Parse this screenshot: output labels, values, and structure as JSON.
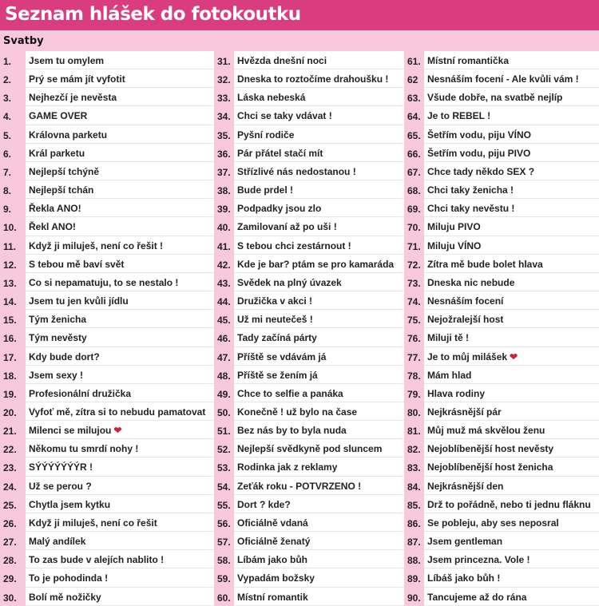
{
  "title": "Seznam hlášek do fotokoutku",
  "section": "Svatby",
  "colors": {
    "header": "#d93d80",
    "background": "#f8c8dc",
    "heart": "#d3203a"
  },
  "items": [
    {
      "n": "1.",
      "t": "Jsem tu omylem"
    },
    {
      "n": "2.",
      "t": "Prý se mám jít vyfotit"
    },
    {
      "n": "3.",
      "t": "Nejhezčí je nevěsta"
    },
    {
      "n": "4.",
      "t": "GAME OVER"
    },
    {
      "n": "5.",
      "t": "Královna parketu"
    },
    {
      "n": "6.",
      "t": "Král parketu"
    },
    {
      "n": "7.",
      "t": "Nejlepší tchýně"
    },
    {
      "n": "8.",
      "t": "Nejlepší tchán"
    },
    {
      "n": "9.",
      "t": "Řekla ANO!"
    },
    {
      "n": "10.",
      "t": "Řekl ANO!"
    },
    {
      "n": "11.",
      "t": "Když ji miluješ, není co řešit !"
    },
    {
      "n": "12.",
      "t": "S tebou mě baví svět"
    },
    {
      "n": "13.",
      "t": "Co si nepamatuju, to se nestalo !"
    },
    {
      "n": "14.",
      "t": "Jsem tu jen kvůli jídlu"
    },
    {
      "n": "15.",
      "t": "Tým ženicha"
    },
    {
      "n": "16.",
      "t": "Tým nevěsty"
    },
    {
      "n": "17.",
      "t": "Kdy bude dort?"
    },
    {
      "n": "18.",
      "t": "Jsem sexy !"
    },
    {
      "n": "19.",
      "t": "Profesionální družička"
    },
    {
      "n": "20.",
      "t": "Vyfoť mě, zítra si to nebudu pamatovat"
    },
    {
      "n": "21.",
      "t": "Milenci se milujou",
      "heart": true
    },
    {
      "n": "22.",
      "t": "Někomu tu smrdí nohy !"
    },
    {
      "n": "23.",
      "t": "SÝÝÝÝÝÝÝR !"
    },
    {
      "n": "24.",
      "t": "Už se perou ?"
    },
    {
      "n": "25.",
      "t": "Chytla jsem kytku"
    },
    {
      "n": "26.",
      "t": "Když ji miluješ, není co řešit"
    },
    {
      "n": "27.",
      "t": "Malý andílek"
    },
    {
      "n": "28.",
      "t": "To zas bude v alejích nablito !"
    },
    {
      "n": "29.",
      "t": "To je pohodinda !"
    },
    {
      "n": "30.",
      "t": "Bolí mě nožičky"
    },
    {
      "n": "31.",
      "t": "Hvězda dnešní noci"
    },
    {
      "n": "32.",
      "t": "Dneska to roztočíme drahoušku !"
    },
    {
      "n": "33.",
      "t": "Láska nebeská"
    },
    {
      "n": "34.",
      "t": "Chci se taky vdávat !"
    },
    {
      "n": "35.",
      "t": "Pyšní rodiče"
    },
    {
      "n": "36.",
      "t": "Pár přátel stačí mít"
    },
    {
      "n": "37.",
      "t": "Střízlivé nás nedostanou !"
    },
    {
      "n": "38.",
      "t": "Bude prdel !"
    },
    {
      "n": "39.",
      "t": "Podpadky jsou zlo"
    },
    {
      "n": "40.",
      "t": "Zamilovaní až po uši !"
    },
    {
      "n": "41.",
      "t": "S tebou chci zestárnout !"
    },
    {
      "n": "42.",
      "t": "Kde je bar? ptám se pro kamaráda"
    },
    {
      "n": "43.",
      "t": "Svědek na plný úvazek"
    },
    {
      "n": "44.",
      "t": "Družička v akci !"
    },
    {
      "n": "45.",
      "t": "Už mi neutečeš !"
    },
    {
      "n": "46.",
      "t": "Tady začíná párty"
    },
    {
      "n": "47.",
      "t": "Příště se vdávám já"
    },
    {
      "n": "48.",
      "t": "Příště se žením já"
    },
    {
      "n": "49.",
      "t": "Chce to selfie a panáka"
    },
    {
      "n": "50.",
      "t": "Konečně ! už bylo na čase"
    },
    {
      "n": "51.",
      "t": "Bez nás by to byla nuda"
    },
    {
      "n": "52.",
      "t": "Nejlepší svědkyně pod sluncem"
    },
    {
      "n": "53.",
      "t": "Rodinka jak z reklamy"
    },
    {
      "n": "54.",
      "t": "Zeťák roku - POTVRZENO !"
    },
    {
      "n": "55.",
      "t": "Dort ? kde?"
    },
    {
      "n": "56.",
      "t": "Oficiálně vdaná"
    },
    {
      "n": "57.",
      "t": "Oficiálně ženatý"
    },
    {
      "n": "58.",
      "t": "Líbám jako bůh"
    },
    {
      "n": "59.",
      "t": "Vypadám božsky"
    },
    {
      "n": "60.",
      "t": "Místní romantik"
    },
    {
      "n": "61.",
      "t": "Místní romantička"
    },
    {
      "n": "62",
      "t": "Nesnáším focení - Ale kvůli vám !"
    },
    {
      "n": "63.",
      "t": "Všude dobře, na svatbě nejlíp"
    },
    {
      "n": "64.",
      "t": "Je to REBEL !"
    },
    {
      "n": "65.",
      "t": "Šetřím vodu, piju VÍNO"
    },
    {
      "n": "66.",
      "t": "Šetřím vodu, piju PIVO"
    },
    {
      "n": "67.",
      "t": "Chce tady někdo SEX ?"
    },
    {
      "n": "68.",
      "t": "Chci taky ženicha !"
    },
    {
      "n": "69.",
      "t": "Chci taky nevěstu !"
    },
    {
      "n": "70.",
      "t": "Miluju PIVO"
    },
    {
      "n": "71.",
      "t": "Miluju VÍNO"
    },
    {
      "n": "72.",
      "t": "Zítra mě bude bolet hlava"
    },
    {
      "n": "73.",
      "t": "Dneska nic nebude"
    },
    {
      "n": "74.",
      "t": "Nesnáším focení"
    },
    {
      "n": "75.",
      "t": "Nejožralejší host"
    },
    {
      "n": "76.",
      "t": "Miluji tě !"
    },
    {
      "n": "77.",
      "t": "Je to můj milášek",
      "heart": true
    },
    {
      "n": "78.",
      "t": "Mám hlad"
    },
    {
      "n": "79.",
      "t": "Hlava rodiny"
    },
    {
      "n": "80.",
      "t": "Nejkrásnější pár"
    },
    {
      "n": "81.",
      "t": "Můj muž má skvělou ženu"
    },
    {
      "n": "82.",
      "t": "Nejoblíbenější host nevěsty"
    },
    {
      "n": "83.",
      "t": "Nejoblíbenější host ženicha"
    },
    {
      "n": "84.",
      "t": "Nejkrásnější den"
    },
    {
      "n": "85.",
      "t": "Drž to pořádně, nebo ti jednu fláknu"
    },
    {
      "n": "86.",
      "t": "Se pobleju, aby ses neposral"
    },
    {
      "n": "87.",
      "t": "Jsem gentleman"
    },
    {
      "n": "88.",
      "t": "Jsem princezna. Vole !"
    },
    {
      "n": "89.",
      "t": "Líbáš jako bůh !"
    },
    {
      "n": "90.",
      "t": "Tancujeme až do rána"
    }
  ]
}
